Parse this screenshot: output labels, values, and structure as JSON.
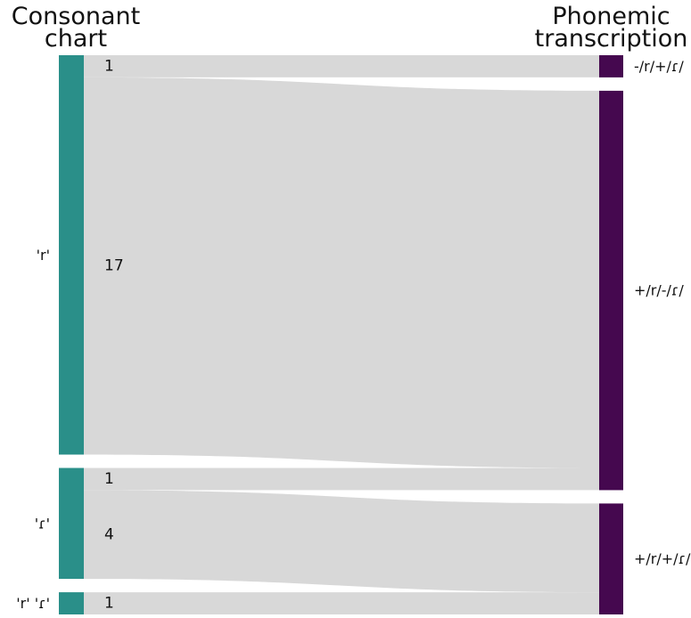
{
  "chart_data": {
    "type": "sankey",
    "left_axis_title": [
      "Consonant",
      "chart"
    ],
    "right_axis_title": [
      "Phonemic",
      "transcription"
    ],
    "left_nodes": [
      {
        "id": "L1",
        "label": "'r'",
        "total": 18
      },
      {
        "id": "L2",
        "label": "'ɾ'",
        "total": 5
      },
      {
        "id": "L3",
        "label": "'r' 'ɾ'",
        "total": 1
      }
    ],
    "right_nodes": [
      {
        "id": "R1",
        "label": "-/r/+/ɾ/",
        "total": 1
      },
      {
        "id": "R2",
        "label": "+/r/-/ɾ/",
        "total": 18
      },
      {
        "id": "R3",
        "label": "+/r/+/ɾ/",
        "total": 5
      }
    ],
    "flows": [
      {
        "from": "L1",
        "to": "R1",
        "value": 1,
        "label": "1"
      },
      {
        "from": "L1",
        "to": "R2",
        "value": 17,
        "label": "17"
      },
      {
        "from": "L2",
        "to": "R2",
        "value": 1,
        "label": "1"
      },
      {
        "from": "L2",
        "to": "R3",
        "value": 4,
        "label": "4"
      },
      {
        "from": "L3",
        "to": "R3",
        "value": 1,
        "label": "1"
      }
    ],
    "colors": {
      "left_node": "#2a8f89",
      "right_node": "#45084f",
      "flow": "#d8d8d8",
      "text": "#111111"
    }
  }
}
